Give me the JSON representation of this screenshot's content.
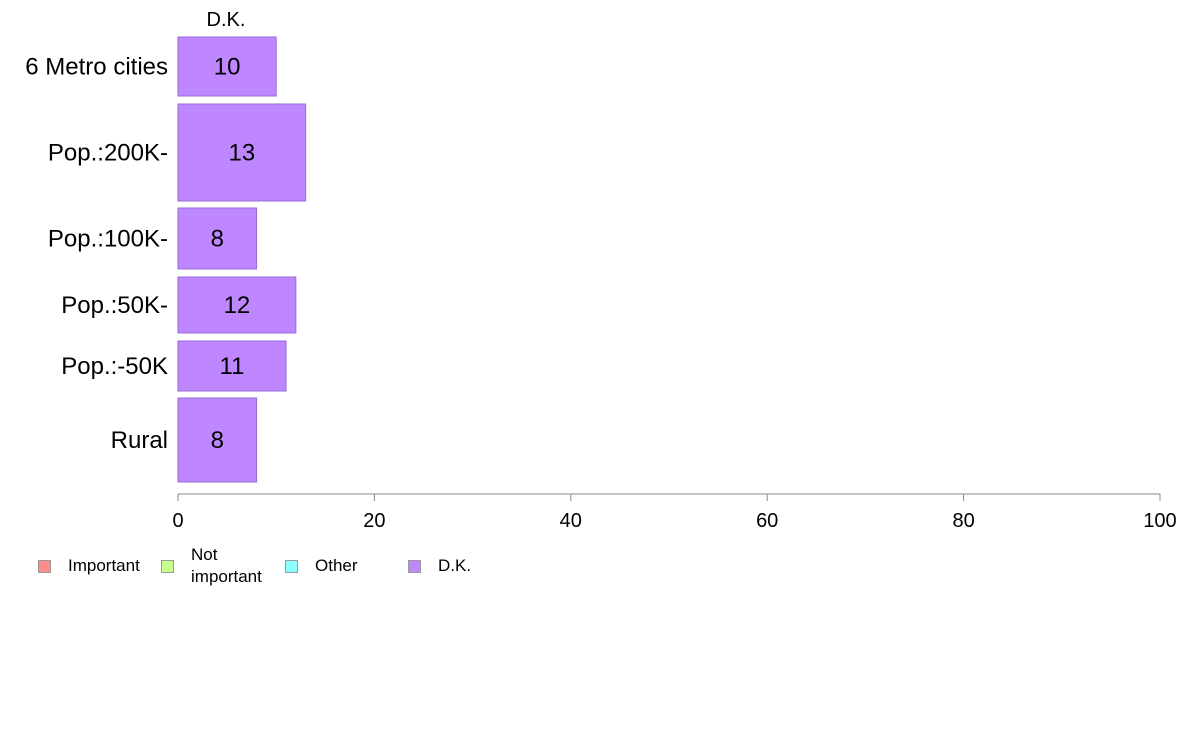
{
  "chart_data": {
    "type": "bar",
    "orientation": "horizontal",
    "column_header": "D.K.",
    "categories": [
      "6 Metro cities",
      "Pop.:200K-",
      "Pop.:100K-",
      "Pop.:50K-",
      "Pop.:-50K",
      "Rural"
    ],
    "series": [
      {
        "name": "D.K.",
        "values": [
          10,
          13,
          8,
          12,
          11,
          8
        ],
        "color": "#bf87ff"
      }
    ],
    "xlim": [
      0,
      100
    ],
    "xticks": [
      0,
      20,
      40,
      60,
      80,
      100
    ],
    "grid": false,
    "legend_position": "bottom-left"
  },
  "legend": {
    "items": [
      {
        "label": "Important",
        "color": "#ff8c8c"
      },
      {
        "label": "Not important",
        "color": "#c8ff8c"
      },
      {
        "label": "Other",
        "color": "#8cffff"
      },
      {
        "label": "D.K.",
        "color": "#bf87ff"
      }
    ]
  }
}
